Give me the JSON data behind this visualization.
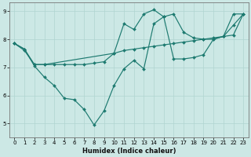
{
  "xlabel": "Humidex (Indice chaleur)",
  "xlim": [
    -0.5,
    23.5
  ],
  "ylim": [
    4.5,
    9.3
  ],
  "yticks": [
    5,
    6,
    7,
    8,
    9
  ],
  "xticks": [
    0,
    1,
    2,
    3,
    4,
    5,
    6,
    7,
    8,
    9,
    10,
    11,
    12,
    13,
    14,
    15,
    16,
    17,
    18,
    19,
    20,
    21,
    22,
    23
  ],
  "bg_color": "#cce8e5",
  "line_color": "#1d7a70",
  "grid_color": "#b0d5d0",
  "line1_x": [
    0,
    1,
    2,
    3,
    4,
    5,
    6,
    7,
    8,
    9,
    10,
    11,
    12,
    13,
    14,
    15,
    16,
    17,
    18,
    19,
    20,
    21,
    22,
    23
  ],
  "line1_y": [
    7.85,
    7.65,
    7.05,
    6.65,
    6.35,
    5.9,
    5.85,
    5.5,
    4.95,
    5.45,
    6.35,
    6.95,
    7.25,
    6.95,
    8.55,
    8.8,
    8.9,
    8.25,
    8.05,
    8.0,
    8.0,
    8.1,
    8.15,
    8.9
  ],
  "line2_x": [
    0,
    1,
    2,
    3,
    4,
    5,
    6,
    7,
    8,
    9,
    10,
    11,
    12,
    13,
    14,
    15,
    16,
    17,
    18,
    19,
    20,
    21,
    22,
    23
  ],
  "line2_y": [
    7.85,
    7.6,
    7.1,
    7.1,
    7.1,
    7.1,
    7.1,
    7.1,
    7.15,
    7.2,
    7.5,
    7.6,
    7.65,
    7.7,
    7.75,
    7.8,
    7.85,
    7.9,
    7.95,
    8.0,
    8.05,
    8.1,
    8.5,
    8.9
  ],
  "line3_x": [
    0,
    1,
    2,
    3,
    10,
    11,
    12,
    13,
    14,
    15,
    16,
    17,
    18,
    19,
    20,
    21,
    22,
    23
  ],
  "line3_y": [
    7.85,
    7.65,
    7.1,
    7.1,
    7.5,
    8.55,
    8.35,
    8.9,
    9.05,
    8.8,
    7.3,
    7.3,
    7.35,
    7.45,
    8.0,
    8.1,
    8.9,
    8.9
  ]
}
